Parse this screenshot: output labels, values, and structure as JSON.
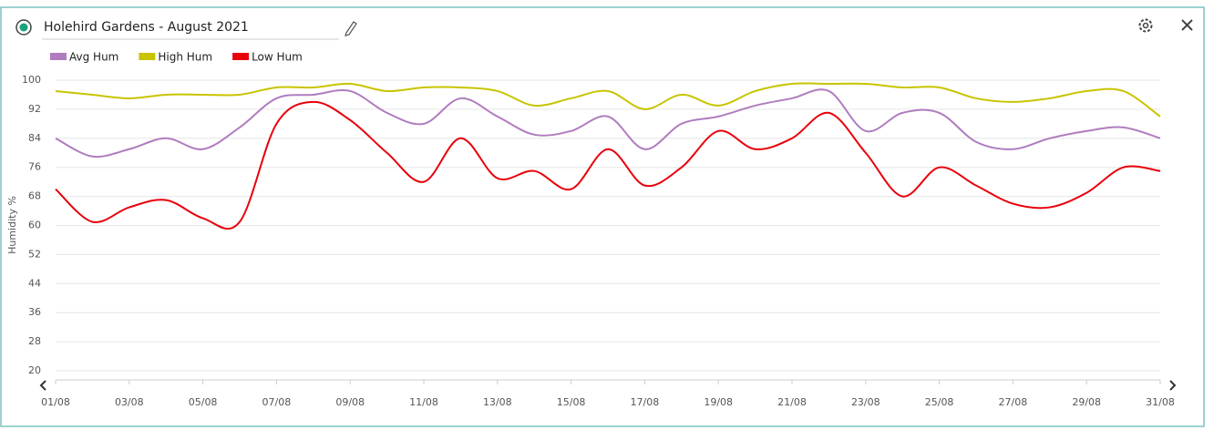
{
  "chart_data": {
    "type": "line",
    "title": "Holehird Gardens - August 2021",
    "y_label": "Humidity %",
    "categories": [
      "01/08",
      null,
      "03/08",
      null,
      "05/08",
      null,
      "07/08",
      null,
      "09/08",
      null,
      "11/08",
      null,
      "13/08",
      null,
      "15/08",
      null,
      "17/08",
      null,
      "19/08",
      null,
      "21/08",
      null,
      "23/08",
      null,
      "25/08",
      null,
      "27/08",
      null,
      "29/08",
      null,
      "31/08"
    ],
    "series": [
      {
        "name": "Avg Hum",
        "color": "#b07cbf",
        "values": [
          84,
          79,
          81,
          84,
          81,
          87,
          95,
          96,
          97,
          91,
          88,
          95,
          90,
          85,
          86,
          90,
          81,
          88,
          90,
          93,
          95,
          97,
          86,
          91,
          91,
          83,
          81,
          84,
          86,
          87,
          84
        ]
      },
      {
        "name": "High Hum",
        "color": "#c8c400",
        "values": [
          97,
          96,
          95,
          96,
          96,
          96,
          98,
          98,
          99,
          97,
          98,
          98,
          97,
          93,
          95,
          97,
          92,
          96,
          93,
          97,
          99,
          99,
          99,
          98,
          98,
          95,
          94,
          95,
          97,
          97,
          90
        ]
      },
      {
        "name": "Low Hum",
        "color": "#e8000b",
        "values": [
          70,
          61,
          65,
          67,
          62,
          61,
          88,
          94,
          89,
          80,
          72,
          84,
          73,
          75,
          70,
          81,
          71,
          76,
          86,
          81,
          84,
          91,
          80,
          68,
          76,
          71,
          66,
          65,
          69,
          76,
          75
        ]
      }
    ],
    "ylim": [
      20,
      100
    ],
    "yticks": [
      20,
      28,
      36,
      44,
      52,
      60,
      68,
      76,
      84,
      92,
      100
    ],
    "grid": true
  }
}
